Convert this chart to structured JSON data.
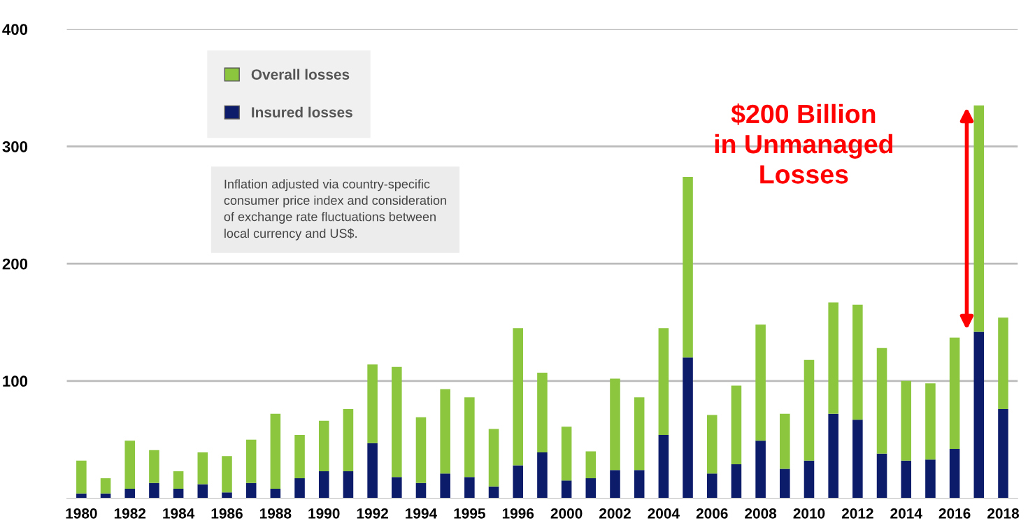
{
  "chart_data": {
    "type": "bar",
    "stacked": true,
    "categories": [
      "1980",
      null,
      "1982",
      null,
      "1984",
      null,
      "1986",
      null,
      "1988",
      null,
      "1990",
      null,
      "1992",
      null,
      "1994",
      null,
      "1995",
      null,
      "1996",
      null,
      "2000",
      null,
      "2002",
      null,
      "2004",
      null,
      "2006",
      null,
      "2008",
      null,
      "2010",
      null,
      "2012",
      null,
      "2014",
      null,
      "2016",
      null,
      "2018"
    ],
    "series": [
      {
        "name": "Insured losses",
        "color": "#0d1b6b",
        "values": [
          4,
          4,
          8,
          13,
          8,
          12,
          5,
          13,
          8,
          17,
          23,
          23,
          47,
          18,
          13,
          21,
          18,
          10,
          28,
          39,
          15,
          17,
          24,
          24,
          54,
          120,
          21,
          29,
          49,
          25,
          32,
          72,
          67,
          38,
          32,
          33,
          42,
          142,
          76
        ]
      },
      {
        "name": "Overall losses",
        "color": "#8cc63f",
        "values": [
          28,
          13,
          41,
          28,
          15,
          27,
          31,
          37,
          64,
          37,
          43,
          53,
          67,
          94,
          56,
          72,
          68,
          49,
          117,
          68,
          46,
          23,
          78,
          62,
          91,
          154,
          50,
          67,
          99,
          47,
          86,
          95,
          98,
          90,
          68,
          65,
          95,
          193,
          78
        ]
      }
    ],
    "ylim": [
      0,
      400
    ],
    "yticks": [
      100,
      200,
      300,
      400
    ],
    "grid": "y",
    "legend": "top left",
    "annotations": [
      "Inflation adjusted via country-specific\nconsumer price index and consideration\nof exchange rate fluctuations between\nlocal currency and US$.",
      "$200 Billion\nin Unmanaged\nLosses"
    ]
  }
}
